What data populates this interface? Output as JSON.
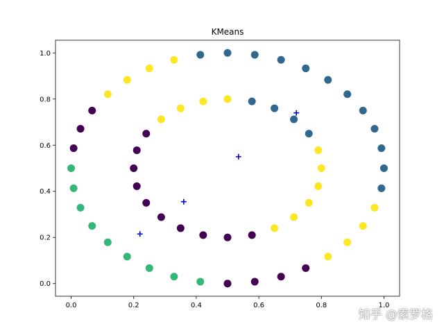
{
  "chart_data": {
    "type": "scatter",
    "title": "KMeans",
    "xlabel": "",
    "ylabel": "",
    "xlim": [
      -0.05,
      1.05
    ],
    "ylim": [
      -0.055,
      1.055
    ],
    "xticks": [
      "0.0",
      "0.2",
      "0.4",
      "0.6",
      "0.8",
      "1.0"
    ],
    "yticks": [
      "0.0",
      "0.2",
      "0.4",
      "0.6",
      "0.8",
      "1.0"
    ],
    "grid": false,
    "cluster_colors": [
      "#440154",
      "#31688e",
      "#35b779",
      "#fde725"
    ],
    "centroid_color": "#0000cc",
    "centroid_marker": "plus",
    "centroids": [
      [
        0.36,
        0.355
      ],
      [
        0.72,
        0.74
      ],
      [
        0.22,
        0.215
      ],
      [
        0.535,
        0.55
      ]
    ],
    "points": [
      [
        1.0,
        0.5,
        1
      ],
      [
        0.992,
        0.587,
        1
      ],
      [
        0.97,
        0.671,
        1
      ],
      [
        0.933,
        0.75,
        1
      ],
      [
        0.883,
        0.821,
        1
      ],
      [
        0.821,
        0.883,
        1
      ],
      [
        0.75,
        0.933,
        1
      ],
      [
        0.671,
        0.97,
        1
      ],
      [
        0.587,
        0.992,
        1
      ],
      [
        0.5,
        1.0,
        1
      ],
      [
        0.413,
        0.992,
        1
      ],
      [
        0.329,
        0.97,
        3
      ],
      [
        0.25,
        0.933,
        3
      ],
      [
        0.179,
        0.883,
        3
      ],
      [
        0.117,
        0.821,
        3
      ],
      [
        0.067,
        0.75,
        0
      ],
      [
        0.03,
        0.671,
        0
      ],
      [
        0.008,
        0.587,
        0
      ],
      [
        0.0,
        0.5,
        2
      ],
      [
        0.008,
        0.413,
        2
      ],
      [
        0.03,
        0.329,
        2
      ],
      [
        0.067,
        0.25,
        2
      ],
      [
        0.117,
        0.179,
        2
      ],
      [
        0.179,
        0.117,
        2
      ],
      [
        0.25,
        0.067,
        2
      ],
      [
        0.329,
        0.03,
        2
      ],
      [
        0.413,
        0.008,
        2
      ],
      [
        0.5,
        0.0,
        0
      ],
      [
        0.587,
        0.008,
        0
      ],
      [
        0.671,
        0.03,
        0
      ],
      [
        0.75,
        0.067,
        0
      ],
      [
        0.821,
        0.117,
        3
      ],
      [
        0.883,
        0.179,
        3
      ],
      [
        0.933,
        0.25,
        3
      ],
      [
        0.97,
        0.329,
        3
      ],
      [
        0.992,
        0.413,
        1
      ],
      [
        0.8,
        0.5,
        3
      ],
      [
        0.79,
        0.578,
        3
      ],
      [
        0.76,
        0.65,
        1
      ],
      [
        0.712,
        0.712,
        1
      ],
      [
        0.65,
        0.76,
        1
      ],
      [
        0.578,
        0.79,
        1
      ],
      [
        0.5,
        0.8,
        3
      ],
      [
        0.422,
        0.79,
        3
      ],
      [
        0.35,
        0.76,
        3
      ],
      [
        0.288,
        0.712,
        3
      ],
      [
        0.24,
        0.65,
        0
      ],
      [
        0.21,
        0.578,
        0
      ],
      [
        0.2,
        0.5,
        0
      ],
      [
        0.21,
        0.422,
        0
      ],
      [
        0.24,
        0.35,
        0
      ],
      [
        0.288,
        0.288,
        0
      ],
      [
        0.35,
        0.24,
        0
      ],
      [
        0.422,
        0.21,
        0
      ],
      [
        0.5,
        0.2,
        0
      ],
      [
        0.578,
        0.21,
        0
      ],
      [
        0.65,
        0.24,
        3
      ],
      [
        0.712,
        0.288,
        3
      ],
      [
        0.76,
        0.35,
        3
      ],
      [
        0.79,
        0.422,
        3
      ]
    ]
  },
  "watermark": "知乎 @索罗格"
}
